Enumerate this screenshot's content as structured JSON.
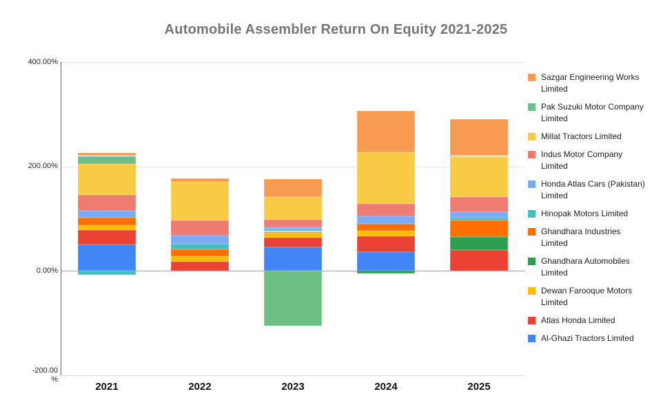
{
  "chart_data": {
    "type": "bar",
    "stacked": true,
    "title": "Automobile Assembler Return On Equity 2021-2025",
    "xlabel": "",
    "ylabel": "%",
    "ylim": [
      -200,
      400
    ],
    "grid": true,
    "legend_position": "right",
    "categories": [
      "2021",
      "2022",
      "2023",
      "2024",
      "2025"
    ],
    "y_ticks": [
      {
        "label": "400.00%",
        "value": 400
      },
      {
        "label": "200.00%",
        "value": 200
      },
      {
        "label": "0.00%",
        "value": 0
      },
      {
        "label": "-200.00\n%",
        "value": -200
      }
    ],
    "series": [
      {
        "name": "Sazgar Engineering Works Limited",
        "color": "#f89b52",
        "values": [
          6,
          7,
          34,
          79,
          70
        ]
      },
      {
        "name": "Pak Suzuki Motor Company Limited",
        "color": "#6dbf85",
        "values": [
          15,
          0,
          -105,
          0,
          0
        ]
      },
      {
        "name": "Millat Tractors Limited",
        "color": "#f9cb45",
        "values": [
          60,
          73,
          44,
          99,
          78
        ]
      },
      {
        "name": "Indus Motor Company Limited",
        "color": "#ee7c72",
        "values": [
          30,
          29,
          15,
          23,
          29
        ]
      },
      {
        "name": "Honda Atlas Cars (Pakistan) Limited",
        "color": "#7baaf7",
        "values": [
          13,
          16,
          4,
          15,
          11
        ]
      },
      {
        "name": "Hinopak Motors Limited",
        "color": "#45bdc5",
        "values": [
          -8,
          11,
          2,
          0,
          5
        ]
      },
      {
        "name": "Ghandhara Industries Limited",
        "color": "#ff6f00",
        "values": [
          15,
          13,
          2,
          13,
          32
        ]
      },
      {
        "name": "Ghandhara Automobiles Limited",
        "color": "#2f9e4f",
        "values": [
          0,
          0,
          2,
          -5,
          25
        ]
      },
      {
        "name": "Dewan Farooque Motors Limited",
        "color": "#fbbc05",
        "values": [
          9,
          11,
          9,
          11,
          0
        ]
      },
      {
        "name": "Atlas Honda Limited",
        "color": "#e94235",
        "values": [
          28,
          17,
          19,
          30,
          40
        ]
      },
      {
        "name": "Al-Ghazi Tractors Limited",
        "color": "#4285f4",
        "values": [
          50,
          0,
          45,
          36,
          0
        ]
      }
    ]
  }
}
